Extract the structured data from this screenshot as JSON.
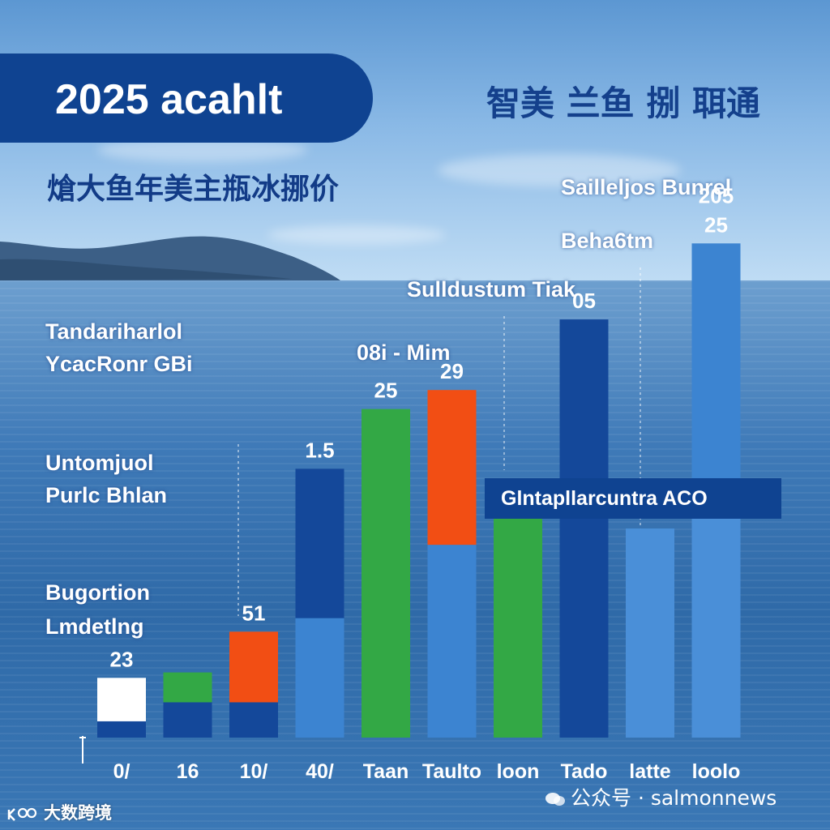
{
  "header": {
    "title": "2025 acahlt",
    "cn_title": "智美 兰鱼 捌 聑通",
    "cn_subtitle": "熗大鱼年美主瓶冰挪价"
  },
  "side_labels": [
    "Tandariharlol",
    "YcacRonr GBi",
    "Untomjuol",
    "Purlc  Bhlan",
    "Bugortion",
    "Lmdetlng"
  ],
  "annotations": {
    "top_right": "Sailleljos  Bunrel",
    "beradstn": "Beha6tm",
    "sulldustum": "Sulldustum Tiak",
    "obi": "08i - Mim",
    "box": "Glntapllarcuntra  ACO"
  },
  "watermarks": {
    "right": "公众号 · salmonnews",
    "left": "大数跨境"
  },
  "colors": {
    "dark_blue": "#14489a",
    "mid_blue": "#3c84d1",
    "light_blue": "#4a8fd8",
    "green": "#33a845",
    "orange": "#f24e14",
    "white": "#ffffff",
    "banner": "#0f4391"
  },
  "chart_data": {
    "type": "bar",
    "stacked": true,
    "categories": [
      "0/",
      "16",
      "10/",
      "40/",
      "Taan",
      "Taulto",
      "loon",
      "Tado",
      "latte",
      "loolo"
    ],
    "segments": [
      [
        {
          "value": 3,
          "color": "dark_blue"
        },
        {
          "value": 8,
          "color": "white"
        }
      ],
      [
        {
          "value": 6.5,
          "color": "dark_blue"
        },
        {
          "value": 5.5,
          "color": "green"
        }
      ],
      [
        {
          "value": 6.5,
          "color": "dark_blue"
        },
        {
          "value": 13,
          "color": "orange"
        }
      ],
      [
        {
          "value": 22,
          "color": "mid_blue"
        },
        {
          "value": 27.5,
          "color": "dark_blue"
        }
      ],
      [
        {
          "value": 60.5,
          "color": "green"
        }
      ],
      [
        {
          "value": 35.5,
          "color": "mid_blue"
        },
        {
          "value": 28.5,
          "color": "orange"
        }
      ],
      [
        {
          "value": 44,
          "color": "green"
        }
      ],
      [
        {
          "value": 77,
          "color": "dark_blue"
        }
      ],
      [
        {
          "value": 38.5,
          "color": "light_blue"
        }
      ],
      [
        {
          "value": 43.5,
          "color": "light_blue"
        },
        {
          "value": 47.5,
          "color": "mid_blue"
        }
      ]
    ],
    "value_labels": [
      {
        "index": 0,
        "text": "23"
      },
      {
        "index": 2,
        "text": "51"
      },
      {
        "index": 3,
        "text": "1.5"
      },
      {
        "index": 4,
        "text": "25"
      },
      {
        "index": 5,
        "text": "29"
      },
      {
        "index": 7,
        "text": "05"
      },
      {
        "index": 9,
        "text": "25"
      },
      {
        "index": 9,
        "text": "205"
      }
    ],
    "ylim": [
      0,
      100
    ]
  }
}
